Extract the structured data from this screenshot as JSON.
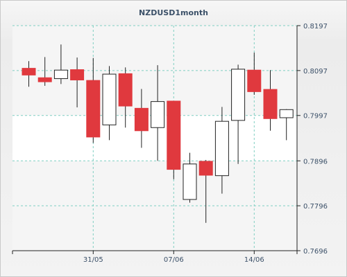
{
  "chart_data": {
    "type": "candlestick",
    "title": "NZDUSD1month",
    "xlabel": "",
    "ylabel": "",
    "ylim": [
      0.7696,
      0.8197
    ],
    "y_ticks": [
      "0.8197",
      "0.8097",
      "0.7997",
      "0.7896",
      "0.7796",
      "0.7696"
    ],
    "x_ticks": [
      {
        "label": "31/05",
        "index": 4
      },
      {
        "label": "07/06",
        "index": 9
      },
      {
        "label": "14/06",
        "index": 14
      }
    ],
    "grid": true,
    "colors": {
      "up": "#ffffff",
      "down": "#e0393e",
      "edge": "#222222",
      "grid": "#7fcfc2"
    },
    "candles": [
      {
        "open": 0.8102,
        "high": 0.8118,
        "low": 0.8061,
        "close": 0.8087
      },
      {
        "open": 0.8081,
        "high": 0.8127,
        "low": 0.8063,
        "close": 0.8072
      },
      {
        "open": 0.8079,
        "high": 0.8155,
        "low": 0.8067,
        "close": 0.8098
      },
      {
        "open": 0.8099,
        "high": 0.8126,
        "low": 0.8015,
        "close": 0.8076
      },
      {
        "open": 0.8075,
        "high": 0.8125,
        "low": 0.7936,
        "close": 0.7949
      },
      {
        "open": 0.7976,
        "high": 0.8107,
        "low": 0.7942,
        "close": 0.8089
      },
      {
        "open": 0.809,
        "high": 0.8104,
        "low": 0.797,
        "close": 0.8018
      },
      {
        "open": 0.8013,
        "high": 0.8056,
        "low": 0.7925,
        "close": 0.7963
      },
      {
        "open": 0.797,
        "high": 0.8109,
        "low": 0.7896,
        "close": 0.8028
      },
      {
        "open": 0.8029,
        "high": 0.8029,
        "low": 0.7855,
        "close": 0.7877
      },
      {
        "open": 0.781,
        "high": 0.7914,
        "low": 0.7803,
        "close": 0.7889
      },
      {
        "open": 0.7895,
        "high": 0.7898,
        "low": 0.7758,
        "close": 0.7864
      },
      {
        "open": 0.7863,
        "high": 0.8016,
        "low": 0.7823,
        "close": 0.7984
      },
      {
        "open": 0.7986,
        "high": 0.811,
        "low": 0.7889,
        "close": 0.81
      },
      {
        "open": 0.8098,
        "high": 0.8137,
        "low": 0.8043,
        "close": 0.805
      },
      {
        "open": 0.8055,
        "high": 0.8098,
        "low": 0.7963,
        "close": 0.799
      },
      {
        "open": 0.7992,
        "high": 0.8011,
        "low": 0.7942,
        "close": 0.801
      }
    ]
  }
}
